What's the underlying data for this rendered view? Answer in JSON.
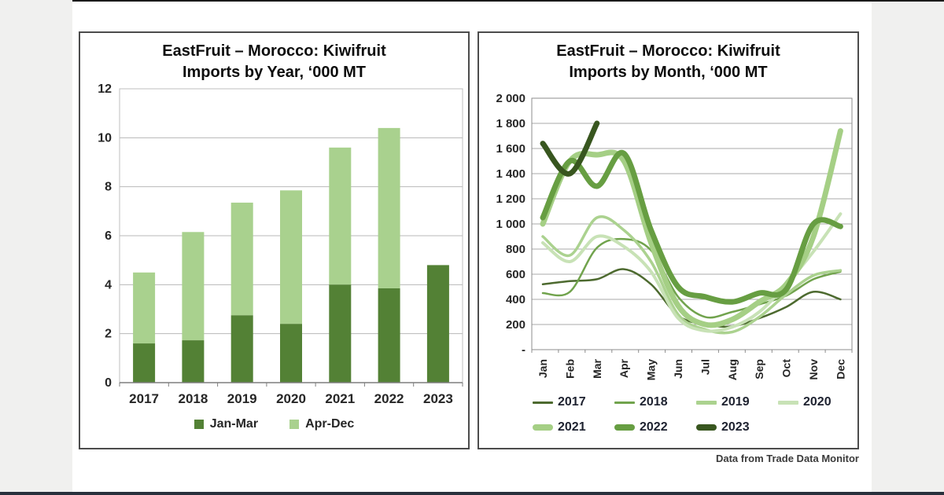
{
  "page": {
    "source_note": "Data from Trade Data Monitor"
  },
  "chart_data": [
    {
      "type": "bar",
      "stacked": true,
      "title": [
        "EastFruit – Morocco: Kiwifruit",
        "Imports by Year, ‘000 MT"
      ],
      "categories": [
        "2017",
        "2018",
        "2019",
        "2020",
        "2021",
        "2022",
        "2023"
      ],
      "series": [
        {
          "name": "Jan-Mar",
          "color": "#538135",
          "values": [
            1.6,
            1.73,
            2.75,
            2.4,
            4.0,
            3.85,
            4.8
          ]
        },
        {
          "name": "Apr-Dec",
          "color": "#a9d18e",
          "values": [
            2.9,
            4.42,
            4.6,
            5.45,
            5.6,
            6.55,
            0
          ]
        }
      ],
      "ylim": [
        0,
        12
      ],
      "yticks": [
        0,
        2,
        4,
        6,
        8,
        10,
        12
      ],
      "grid": true,
      "legend_position": "bottom"
    },
    {
      "type": "line",
      "title": [
        "EastFruit – Morocco: Kiwifruit",
        "Imports by Month, ‘000 MT"
      ],
      "x": [
        "Jan",
        "Feb",
        "Mar",
        "Apr",
        "May",
        "Jun",
        "Jul",
        "Aug",
        "Sep",
        "Oct",
        "Nov",
        "Dec"
      ],
      "ylim": [
        0,
        2000
      ],
      "ytick_labels": [
        "2 000",
        "1 800",
        "1 600",
        "1 400",
        "1 200",
        "1 000",
        "800",
        "600",
        "400",
        "200",
        "-"
      ],
      "grid": true,
      "legend_position": "bottom",
      "series": [
        {
          "name": "2017",
          "color": "#4d6a2f",
          "line_width": 2.5,
          "values": [
            520,
            545,
            560,
            640,
            520,
            270,
            200,
            185,
            250,
            340,
            460,
            400
          ]
        },
        {
          "name": "2018",
          "color": "#71a34d",
          "line_width": 2.5,
          "values": [
            450,
            460,
            810,
            880,
            790,
            420,
            260,
            300,
            360,
            430,
            560,
            620
          ]
        },
        {
          "name": "2019",
          "color": "#abd28f",
          "line_width": 3.5,
          "values": [
            900,
            750,
            1050,
            950,
            700,
            280,
            160,
            140,
            260,
            440,
            590,
            630
          ]
        },
        {
          "name": "2020",
          "color": "#c8e2b6",
          "line_width": 4,
          "values": [
            850,
            700,
            900,
            820,
            620,
            250,
            150,
            180,
            300,
            520,
            780,
            1080
          ]
        },
        {
          "name": "2021",
          "color": "#a5cf85",
          "line_width": 7,
          "values": [
            1000,
            1500,
            1550,
            1500,
            850,
            350,
            200,
            240,
            380,
            520,
            900,
            1740
          ]
        },
        {
          "name": "2022",
          "color": "#679e42",
          "line_width": 7,
          "values": [
            1050,
            1500,
            1300,
            1560,
            950,
            500,
            420,
            380,
            450,
            480,
            1000,
            980
          ]
        },
        {
          "name": "2023",
          "color": "#38561f",
          "line_width": 7,
          "values": [
            1640,
            1400,
            1800,
            null,
            null,
            null,
            null,
            null,
            null,
            null,
            null,
            null
          ]
        }
      ]
    }
  ]
}
